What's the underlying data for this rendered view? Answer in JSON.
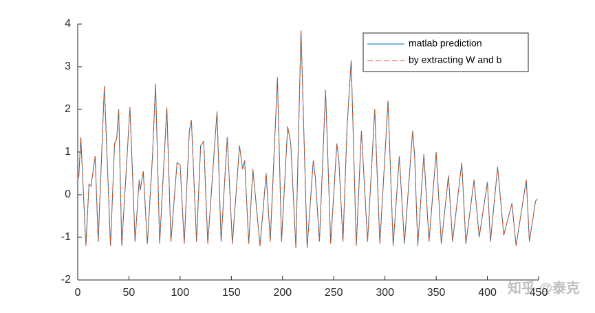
{
  "chart_data": {
    "type": "line",
    "x": [
      1,
      3,
      8,
      11,
      13,
      17,
      20,
      26,
      32,
      36,
      38,
      40,
      43,
      51,
      56,
      60,
      61,
      64,
      68,
      73,
      76,
      80,
      87,
      91,
      97,
      100,
      104,
      109,
      111,
      116,
      120,
      123,
      127,
      136,
      140,
      146,
      151,
      158,
      161,
      163,
      167,
      171,
      178,
      184,
      188,
      195,
      199,
      205,
      208,
      213,
      218,
      224,
      230,
      232,
      236,
      242,
      247,
      253,
      255,
      259,
      263,
      267,
      272,
      277,
      283,
      290,
      295,
      303,
      308,
      314,
      319,
      327,
      329,
      332,
      338,
      343,
      350,
      355,
      362,
      366,
      375,
      379,
      387,
      392,
      400,
      403,
      410,
      416,
      424,
      428,
      438,
      441,
      447,
      449
    ],
    "series": [
      {
        "name": "matlab prediction",
        "color": "#0072bd",
        "dash": false,
        "values": [
          0.4,
          1.35,
          -1.2,
          0.25,
          0.2,
          0.9,
          -1.1,
          2.55,
          -1.2,
          1.2,
          1.3,
          2.0,
          -1.2,
          2.05,
          -1.1,
          0.35,
          0.1,
          0.55,
          -1.15,
          0.9,
          2.6,
          -1.15,
          2.05,
          -1.1,
          0.75,
          0.7,
          -1.15,
          1.5,
          1.75,
          -1.1,
          1.15,
          1.25,
          -1.15,
          1.95,
          -1.1,
          1.35,
          -1.15,
          1.15,
          0.6,
          0.8,
          -1.15,
          0.6,
          -1.2,
          0.5,
          -1.1,
          2.75,
          -1.1,
          1.6,
          1.2,
          -1.25,
          3.85,
          -1.25,
          0.8,
          0.4,
          -1.1,
          2.45,
          -1.15,
          1.2,
          0.8,
          -1.1,
          1.6,
          3.15,
          -1.2,
          1.5,
          -1.1,
          2.0,
          -1.15,
          2.2,
          -1.2,
          0.9,
          -1.15,
          1.5,
          0.9,
          -1.2,
          0.95,
          -1.1,
          1.0,
          -1.15,
          0.45,
          -1.1,
          0.75,
          -1.15,
          0.35,
          -1.0,
          0.3,
          -1.1,
          0.65,
          -0.95,
          -0.2,
          -1.2,
          0.35,
          -1.1,
          -0.15,
          -0.1
        ]
      },
      {
        "name": "by extracting W and b",
        "color": "#d95319",
        "dash": true,
        "values": [
          0.4,
          1.35,
          -1.2,
          0.25,
          0.2,
          0.9,
          -1.1,
          2.55,
          -1.2,
          1.2,
          1.3,
          2.0,
          -1.2,
          2.05,
          -1.1,
          0.35,
          0.1,
          0.55,
          -1.15,
          0.9,
          2.6,
          -1.15,
          2.05,
          -1.1,
          0.75,
          0.7,
          -1.15,
          1.5,
          1.75,
          -1.1,
          1.15,
          1.25,
          -1.15,
          1.95,
          -1.1,
          1.35,
          -1.15,
          1.15,
          0.6,
          0.8,
          -1.15,
          0.6,
          -1.2,
          0.5,
          -1.1,
          2.75,
          -1.1,
          1.6,
          1.2,
          -1.25,
          3.85,
          -1.25,
          0.8,
          0.4,
          -1.1,
          2.45,
          -1.15,
          1.2,
          0.8,
          -1.1,
          1.6,
          3.15,
          -1.2,
          1.5,
          -1.1,
          2.0,
          -1.15,
          2.2,
          -1.2,
          0.9,
          -1.15,
          1.5,
          0.9,
          -1.2,
          0.95,
          -1.1,
          1.0,
          -1.15,
          0.45,
          -1.1,
          0.75,
          -1.15,
          0.35,
          -1.0,
          0.3,
          -1.1,
          0.65,
          -0.95,
          -0.2,
          -1.2,
          0.35,
          -1.1,
          -0.15,
          -0.1
        ]
      }
    ],
    "xlim": [
      0,
      450
    ],
    "xticks": [
      0,
      50,
      100,
      150,
      200,
      250,
      300,
      350,
      400,
      450
    ],
    "ylim": [
      -2,
      4
    ],
    "yticks": [
      -2,
      -1,
      0,
      1,
      2,
      3,
      4
    ],
    "grid": false,
    "legend": "northeast",
    "watermark": "知乎 @泰克"
  }
}
